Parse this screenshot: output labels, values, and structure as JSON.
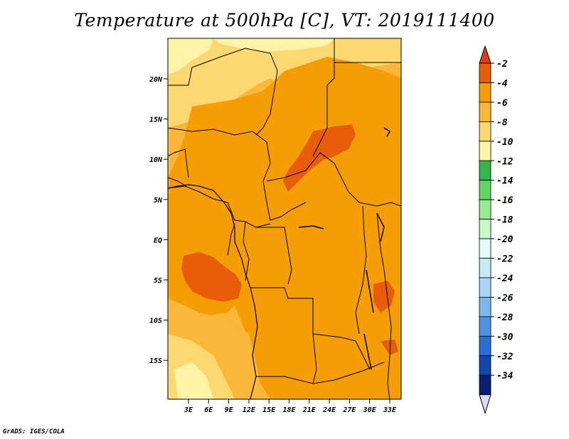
{
  "title": "Temperature at 500hPa [C], VT: 2019111400",
  "credit": "GrADS: IGES/COLA",
  "map": {
    "lat_ticks": [
      "20N",
      "15N",
      "10N",
      "5N",
      "EQ",
      "5S",
      "10S",
      "15S"
    ],
    "lon_ticks": [
      "3E",
      "6E",
      "9E",
      "12E",
      "15E",
      "18E",
      "21E",
      "24E",
      "27E",
      "30E",
      "33E"
    ]
  },
  "colorbar": {
    "labels": [
      "-2",
      "-4",
      "-6",
      "-8",
      "-10",
      "-12",
      "-14",
      "-16",
      "-18",
      "-20",
      "-22",
      "-24",
      "-26",
      "-28",
      "-30",
      "-32",
      "-34"
    ],
    "colors": [
      "#e85c0a",
      "#f49d05",
      "#fbb73a",
      "#fdd872",
      "#fff3a8",
      "#34b64a",
      "#61d463",
      "#97ec93",
      "#c8fac4",
      "#e4fbfa",
      "#c7e9f8",
      "#a9d7f5",
      "#7cb8ee",
      "#4f94e2",
      "#2a6fd2",
      "#1148ad",
      "#0b1f78"
    ],
    "top_arrow_color": "#e23c18",
    "bottom_arrow_color": "#dcdcfa"
  }
}
